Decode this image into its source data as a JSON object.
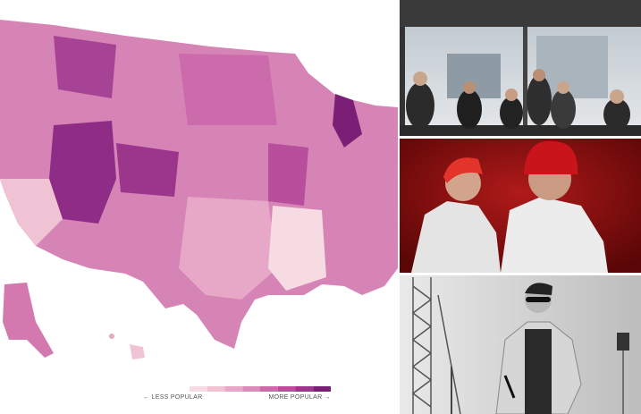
{
  "map": {
    "legend": {
      "less_label": "← LESS POPULAR",
      "more_label": "MORE POPULAR →",
      "colors": [
        "#f6dbe3",
        "#efc3d4",
        "#e6a8c6",
        "#db8bb9",
        "#cc6bab",
        "#b84f9d",
        "#9c358c",
        "#7b1f76"
      ]
    }
  }
}
